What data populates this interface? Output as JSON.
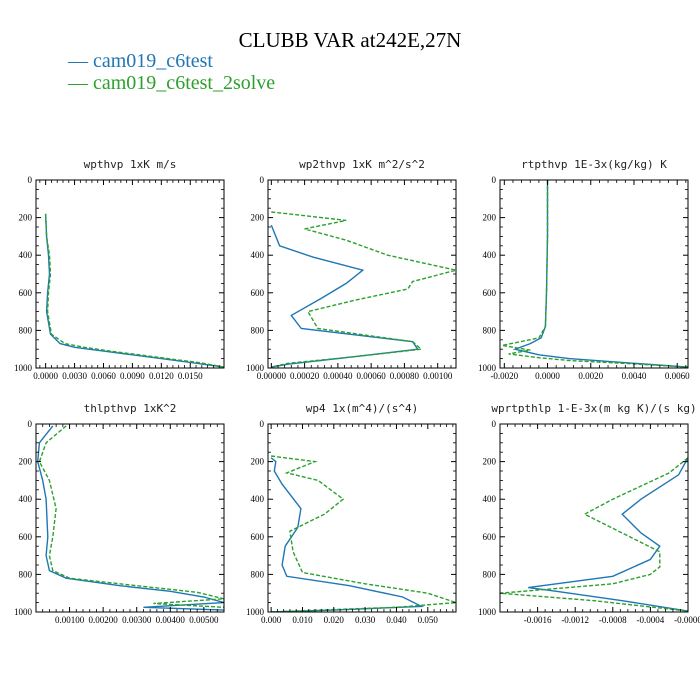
{
  "title": "CLUBB VAR at242E,27N",
  "legend": [
    {
      "label": "cam019_c6test",
      "color": "#1f77b4"
    },
    {
      "label": "cam019_c6test_2solve",
      "color": "#2ca02c"
    }
  ],
  "chart_data": [
    {
      "type": "line",
      "title": "wpthvp   1xK m/s",
      "xlim": [
        -0.001,
        0.0185
      ],
      "ylim": [
        1000,
        0
      ],
      "y_ticks": [
        "0",
        "200",
        "400",
        "600",
        "800",
        "1000"
      ],
      "x_ticks": [
        {
          "v": 0,
          "t": "0.0000"
        },
        {
          "v": 0.003,
          "t": "0.0030"
        },
        {
          "v": 0.006,
          "t": "0.0060"
        },
        {
          "v": 0.009,
          "t": "0.0090"
        },
        {
          "v": 0.012,
          "t": "0.0120"
        },
        {
          "v": 0.015,
          "t": "0.0150"
        }
      ],
      "series": [
        {
          "color": "#1f77b4",
          "dash": false,
          "x": [
            0,
            0.0001,
            0.0003,
            0.0004,
            0.0002,
            0.0001,
            0.0005,
            0.0015,
            0.003,
            0.006,
            0.009,
            0.012,
            0.015,
            0.0185
          ],
          "y": [
            180,
            300,
            400,
            500,
            600,
            700,
            820,
            870,
            890,
            910,
            930,
            950,
            970,
            995
          ]
        },
        {
          "color": "#2ca02c",
          "dash": true,
          "x": [
            0,
            0.0001,
            0.0004,
            0.0005,
            0.0003,
            0.0002,
            0.0006,
            0.002,
            0.004,
            0.007,
            0.01,
            0.013,
            0.016,
            0.0185
          ],
          "y": [
            180,
            300,
            400,
            500,
            600,
            700,
            820,
            870,
            890,
            912,
            932,
            952,
            972,
            995
          ]
        }
      ]
    },
    {
      "type": "line",
      "title": "wp2thvp   1xK m^2/s^2",
      "xlim": [
        -2e-05,
        0.00111
      ],
      "ylim": [
        1000,
        0
      ],
      "y_ticks": [
        "0",
        "200",
        "400",
        "600",
        "800",
        "1000"
      ],
      "x_ticks": [
        {
          "v": 0,
          "t": "0.00000"
        },
        {
          "v": 0.0002,
          "t": "0.00020"
        },
        {
          "v": 0.0004,
          "t": "0.00040"
        },
        {
          "v": 0.0006,
          "t": "0.00060"
        },
        {
          "v": 0.0008,
          "t": "0.00080"
        },
        {
          "v": 0.001,
          "t": "0.00100"
        }
      ],
      "series": [
        {
          "color": "#1f77b4",
          "dash": false,
          "x": [
            0,
            5e-05,
            0.00025,
            0.00055,
            0.00045,
            0.0003,
            0.00012,
            0.00018,
            0.00085,
            0.00088,
            0.0004,
            0.0001,
            0
          ],
          "y": [
            240,
            350,
            410,
            480,
            550,
            630,
            720,
            790,
            860,
            900,
            950,
            980,
            995
          ]
        },
        {
          "color": "#2ca02c",
          "dash": true,
          "x": [
            0,
            0.0001,
            0.00045,
            0.0002,
            0.00045,
            0.0007,
            0.00111,
            0.00085,
            0.00082,
            0.0005,
            0.00022,
            0.00028,
            0.00085,
            0.0009,
            0.0005,
            0.0001,
            0
          ],
          "y": [
            170,
            180,
            215,
            260,
            320,
            400,
            480,
            540,
            580,
            640,
            700,
            790,
            860,
            900,
            940,
            975,
            995
          ]
        }
      ]
    },
    {
      "type": "line",
      "title": "rtpthvp   1E-3x(kg/kg) K",
      "xlim": [
        -0.0022,
        0.0065
      ],
      "ylim": [
        1000,
        0
      ],
      "y_ticks": [
        "0",
        "200",
        "400",
        "600",
        "800",
        "1000"
      ],
      "x_ticks": [
        {
          "v": -0.002,
          "t": "-0.0020"
        },
        {
          "v": 0,
          "t": "0.0000"
        },
        {
          "v": 0.002,
          "t": "0.0020"
        },
        {
          "v": 0.004,
          "t": "0.0040"
        },
        {
          "v": 0.006,
          "t": "0.0060"
        }
      ],
      "series": [
        {
          "color": "#1f77b4",
          "dash": false,
          "x": [
            0,
            0,
            -5e-05,
            -0.0001,
            -0.0003,
            -0.0008,
            -0.0015,
            -0.0004,
            0.001,
            0.004,
            0.0065
          ],
          "y": [
            0,
            300,
            600,
            780,
            840,
            870,
            900,
            930,
            950,
            975,
            995
          ]
        },
        {
          "color": "#2ca02c",
          "dash": true,
          "x": [
            0,
            0,
            -5e-05,
            -0.0001,
            -0.0004,
            -0.0021,
            -0.0008,
            -0.0018,
            -0.0004,
            0.001,
            0.004,
            0.0065
          ],
          "y": [
            0,
            300,
            600,
            780,
            840,
            880,
            905,
            925,
            945,
            960,
            978,
            995
          ]
        }
      ]
    },
    {
      "type": "line",
      "title": "thlpthvp   1xK^2",
      "xlim": [
        0,
        0.0056
      ],
      "ylim": [
        1000,
        0
      ],
      "y_ticks": [
        "0",
        "200",
        "400",
        "600",
        "800",
        "1000"
      ],
      "x_ticks": [
        {
          "v": 0.001,
          "t": "0.00100"
        },
        {
          "v": 0.002,
          "t": "0.00200"
        },
        {
          "v": 0.003,
          "t": "0.00300"
        },
        {
          "v": 0.004,
          "t": "0.00400"
        },
        {
          "v": 0.005,
          "t": "0.00500"
        }
      ],
      "series": [
        {
          "color": "#1f77b4",
          "dash": false,
          "x": [
            0.0005,
            0.0001,
            5e-05,
            0.0002,
            0.0003,
            0.00035,
            0.0003,
            0.0004,
            0.0009,
            0.0025,
            0.004,
            0.005,
            0.0056,
            0.0032,
            0.0056
          ],
          "y": [
            10,
            100,
            200,
            300,
            400,
            600,
            700,
            780,
            820,
            860,
            890,
            920,
            950,
            975,
            990
          ]
        },
        {
          "color": "#2ca02c",
          "dash": true,
          "x": [
            0.0009,
            0.0003,
            0.0001,
            0.0004,
            0.0006,
            0.0005,
            0.0004,
            0.0005,
            0.001,
            0.003,
            0.0048,
            0.0056,
            0.0035,
            0.0056
          ],
          "y": [
            10,
            100,
            200,
            300,
            450,
            600,
            700,
            780,
            820,
            860,
            895,
            930,
            955,
            975
          ]
        }
      ]
    },
    {
      "type": "line",
      "title": "wp4   1x(m^4)/(s^4)",
      "xlim": [
        -0.001,
        0.059
      ],
      "ylim": [
        1000,
        0
      ],
      "y_ticks": [
        "0",
        "200",
        "400",
        "600",
        "800",
        "1000"
      ],
      "x_ticks": [
        {
          "v": 0,
          "t": "0.000"
        },
        {
          "v": 0.01,
          "t": "0.010"
        },
        {
          "v": 0.02,
          "t": "0.020"
        },
        {
          "v": 0.03,
          "t": "0.030"
        },
        {
          "v": 0.04,
          "t": "0.040"
        },
        {
          "v": 0.05,
          "t": "0.050"
        }
      ],
      "series": [
        {
          "color": "#1f77b4",
          "dash": false,
          "x": [
            0,
            0.0015,
            0.001,
            0.0035,
            0.0095,
            0.0085,
            0.0045,
            0.0035,
            0.005,
            0.025,
            0.042,
            0.048,
            0.02,
            0
          ],
          "y": [
            180,
            200,
            250,
            320,
            450,
            550,
            650,
            750,
            810,
            860,
            920,
            970,
            990,
            1000
          ]
        },
        {
          "color": "#2ca02c",
          "dash": true,
          "x": [
            0,
            0.014,
            0.005,
            0.015,
            0.023,
            0.017,
            0.006,
            0.007,
            0.01,
            0.03,
            0.05,
            0.059,
            0.04,
            0.015,
            0
          ],
          "y": [
            170,
            200,
            260,
            300,
            400,
            480,
            570,
            680,
            790,
            850,
            900,
            950,
            975,
            990,
            1000
          ]
        }
      ]
    },
    {
      "type": "line",
      "title": "wprtpthlp   1-E-3x(m kg K)/(s kg)",
      "xlim": [
        -0.002,
        0
      ],
      "ylim": [
        1000,
        0
      ],
      "y_ticks": [
        "0",
        "200",
        "400",
        "600",
        "800",
        "1000"
      ],
      "x_ticks": [
        {
          "v": -0.0016,
          "t": "-0.0016"
        },
        {
          "v": -0.0012,
          "t": "-0.0012"
        },
        {
          "v": -0.0008,
          "t": "-0.0008"
        },
        {
          "v": -0.0004,
          "t": "-0.0004"
        },
        {
          "v": 0,
          "t": "-0.0000"
        }
      ],
      "series": [
        {
          "color": "#1f77b4",
          "dash": false,
          "x": [
            0,
            -0.0001,
            -0.0005,
            -0.0007,
            -0.0005,
            -0.0003,
            -0.0004,
            -0.0008,
            -0.0017,
            -0.0014,
            -0.0007,
            0
          ],
          "y": [
            180,
            270,
            400,
            480,
            580,
            650,
            720,
            810,
            870,
            890,
            940,
            995
          ]
        },
        {
          "color": "#2ca02c",
          "dash": true,
          "x": [
            0,
            -0.0002,
            -0.0008,
            -0.0011,
            -0.0007,
            -0.0003,
            -0.0003,
            -0.0004,
            -0.0008,
            -0.002,
            -0.001,
            0
          ],
          "y": [
            180,
            260,
            400,
            480,
            580,
            680,
            760,
            800,
            850,
            900,
            940,
            995
          ]
        }
      ]
    }
  ]
}
